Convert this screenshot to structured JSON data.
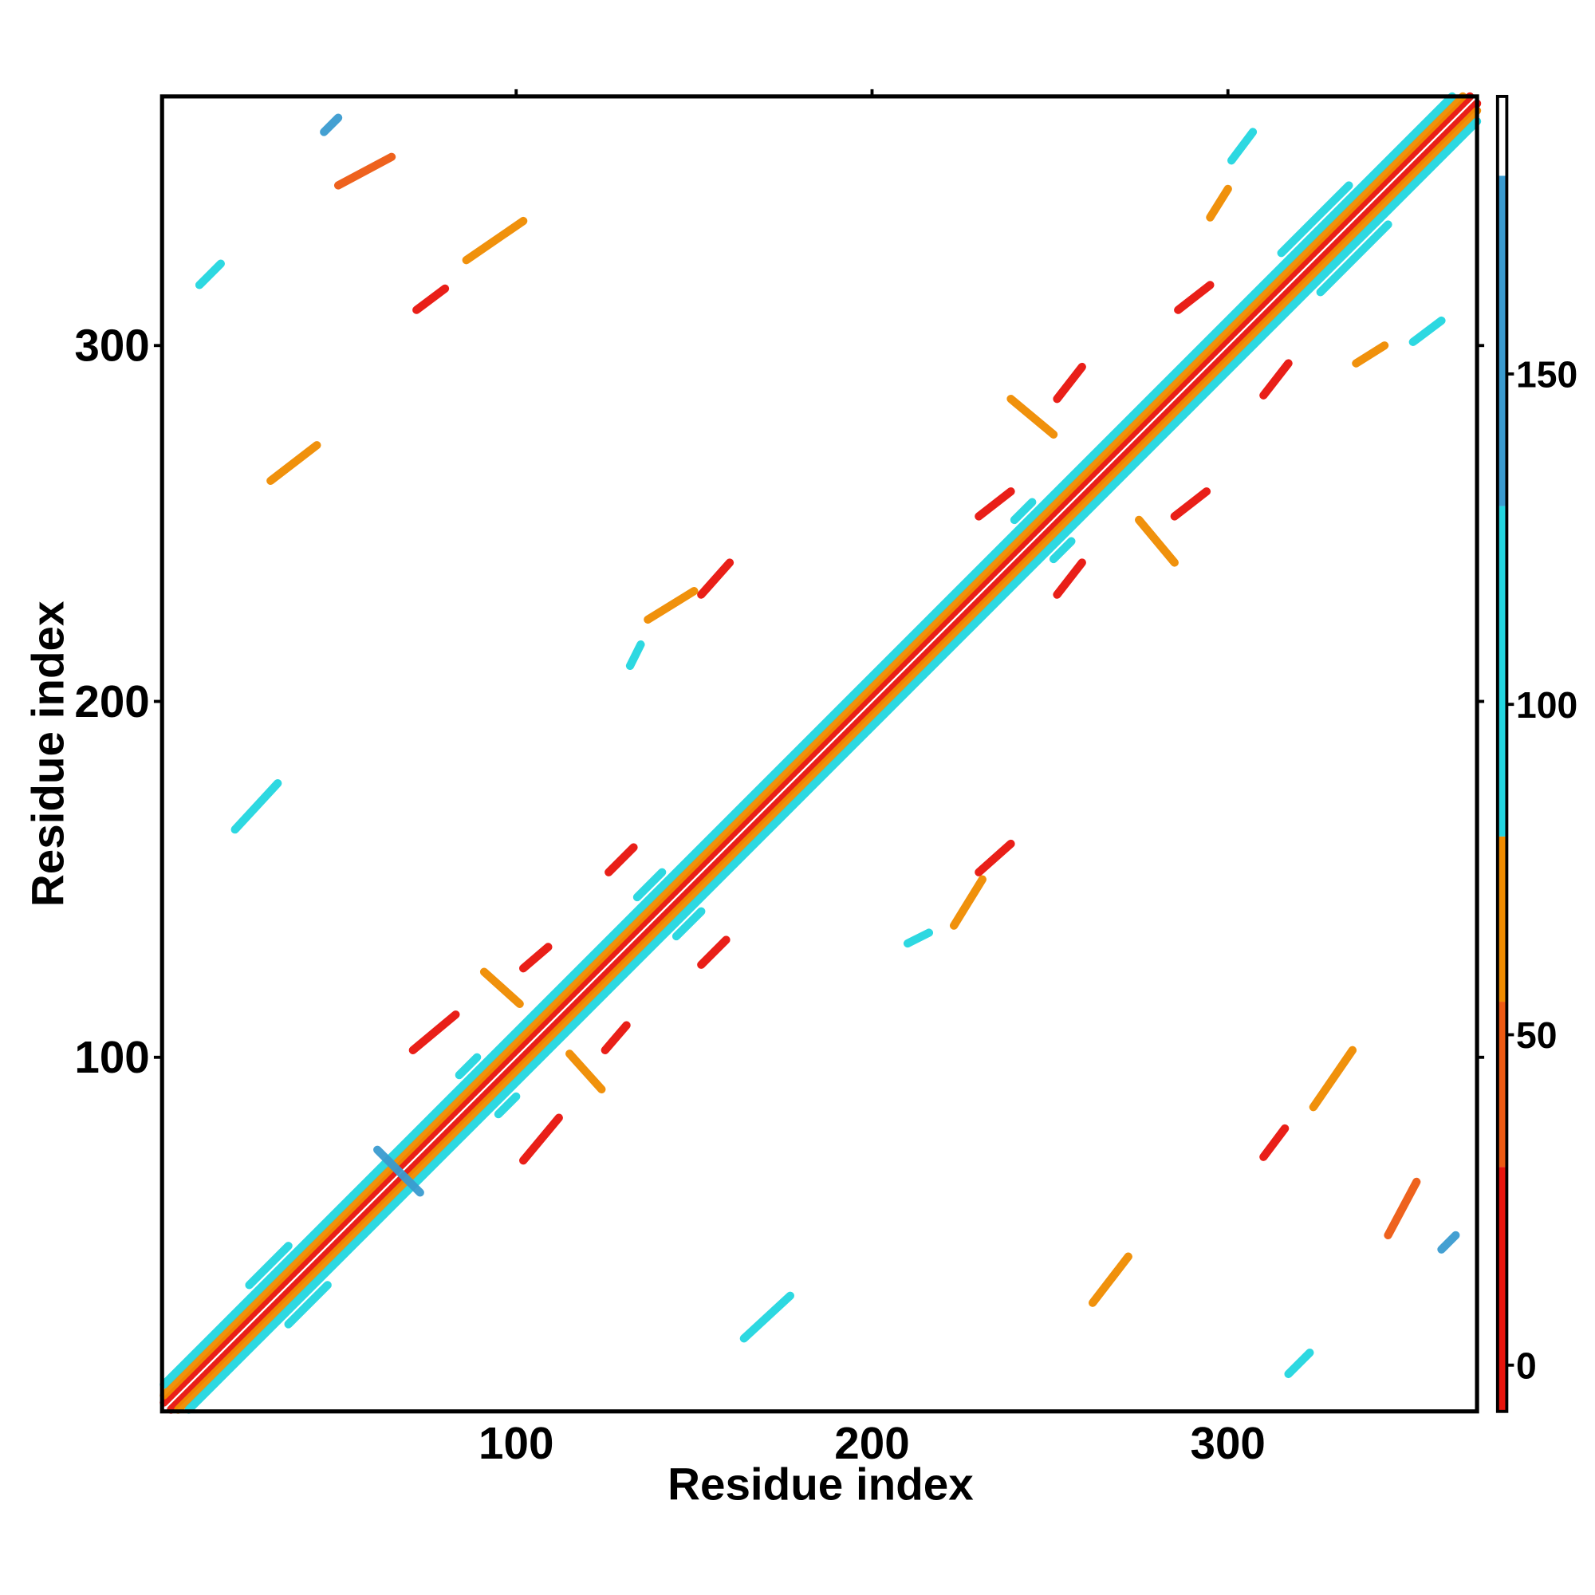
{
  "chart_data": {
    "type": "heatmap",
    "xlabel": "Residue index",
    "ylabel": "Residue index",
    "xlim": [
      0.5,
      370
    ],
    "ylim": [
      0.5,
      370
    ],
    "xticks": [
      100,
      200,
      300
    ],
    "yticks": [
      100,
      200,
      300
    ],
    "colorbar": {
      "lim": [
        -7,
        192
      ],
      "ticks": [
        0,
        50,
        100,
        150
      ],
      "bins": [
        -7,
        30,
        55,
        80,
        130,
        180,
        192
      ],
      "colors": [
        "#e8140c",
        "#ee5a12",
        "#f08c00",
        "#22d6e0",
        "#3a9bd0",
        "#ffffff"
      ]
    },
    "segments": [
      {
        "x": [
          1,
          368
        ],
        "y": [
          3,
          370
        ],
        "value": 10
      },
      {
        "x": [
          3,
          370
        ],
        "y": [
          1,
          368
        ],
        "value": 10
      },
      {
        "x": [
          1,
          366
        ],
        "y": [
          5,
          370
        ],
        "value": 60
      },
      {
        "x": [
          5,
          370
        ],
        "y": [
          1,
          366
        ],
        "value": 60
      },
      {
        "x": [
          1,
          363
        ],
        "y": [
          8,
          370
        ],
        "value": 95
      },
      {
        "x": [
          8,
          370
        ],
        "y": [
          1,
          363
        ],
        "value": 95
      },
      {
        "x": [
          25,
          36
        ],
        "y": [
          36,
          47
        ],
        "value": 100
      },
      {
        "x": [
          36,
          47
        ],
        "y": [
          25,
          36
        ],
        "value": 100
      },
      {
        "x": [
          84,
          89
        ],
        "y": [
          95,
          100
        ],
        "value": 100
      },
      {
        "x": [
          95,
          100
        ],
        "y": [
          84,
          89
        ],
        "value": 100
      },
      {
        "x": [
          134,
          141
        ],
        "y": [
          145,
          152
        ],
        "value": 100
      },
      {
        "x": [
          145,
          152
        ],
        "y": [
          134,
          141
        ],
        "value": 100
      },
      {
        "x": [
          240,
          245
        ],
        "y": [
          251,
          256
        ],
        "value": 100
      },
      {
        "x": [
          251,
          256
        ],
        "y": [
          240,
          245
        ],
        "value": 100
      },
      {
        "x": [
          315,
          334
        ],
        "y": [
          326,
          345
        ],
        "value": 100
      },
      {
        "x": [
          326,
          345
        ],
        "y": [
          315,
          334
        ],
        "value": 100
      },
      {
        "x": [
          102,
          109
        ],
        "y": [
          125,
          131
        ],
        "value": 20
      },
      {
        "x": [
          125,
          131
        ],
        "y": [
          102,
          109
        ],
        "value": 20
      },
      {
        "x": [
          71,
          83
        ],
        "y": [
          102,
          112
        ],
        "value": 20
      },
      {
        "x": [
          102,
          112
        ],
        "y": [
          71,
          83
        ],
        "value": 20
      },
      {
        "x": [
          152,
          159
        ],
        "y": [
          126,
          133
        ],
        "value": 20
      },
      {
        "x": [
          126,
          133
        ],
        "y": [
          152,
          159
        ],
        "value": 20
      },
      {
        "x": [
          152,
          160
        ],
        "y": [
          230,
          239
        ],
        "value": 20
      },
      {
        "x": [
          230,
          239
        ],
        "y": [
          152,
          160
        ],
        "value": 20
      },
      {
        "x": [
          230,
          239
        ],
        "y": [
          252,
          259
        ],
        "value": 20
      },
      {
        "x": [
          252,
          259
        ],
        "y": [
          230,
          239
        ],
        "value": 20
      },
      {
        "x": [
          285,
          294
        ],
        "y": [
          252,
          259
        ],
        "value": 20
      },
      {
        "x": [
          252,
          259
        ],
        "y": [
          285,
          294
        ],
        "value": 20
      },
      {
        "x": [
          286,
          295
        ],
        "y": [
          310,
          317
        ],
        "value": 20
      },
      {
        "x": [
          310,
          317
        ],
        "y": [
          286,
          295
        ],
        "value": 20
      },
      {
        "x": [
          72,
          80
        ],
        "y": [
          310,
          316
        ],
        "value": 20
      },
      {
        "x": [
          310,
          316
        ],
        "y": [
          72,
          80
        ],
        "value": 20
      },
      {
        "x": [
          50,
          65
        ],
        "y": [
          345,
          353
        ],
        "value": 40
      },
      {
        "x": [
          345,
          353
        ],
        "y": [
          50,
          65
        ],
        "value": 40
      },
      {
        "x": [
          86,
          102
        ],
        "y": [
          324,
          335
        ],
        "value": 60
      },
      {
        "x": [
          324,
          335
        ],
        "y": [
          86,
          102
        ],
        "value": 60
      },
      {
        "x": [
          46,
          50
        ],
        "y": [
          360,
          364
        ],
        "value": 140
      },
      {
        "x": [
          360,
          364
        ],
        "y": [
          46,
          50
        ],
        "value": 140
      },
      {
        "x": [
          164,
          177
        ],
        "y": [
          21,
          33
        ],
        "value": 120
      },
      {
        "x": [
          21,
          33
        ],
        "y": [
          164,
          177
        ],
        "value": 120
      },
      {
        "x": [
          61,
          73
        ],
        "y": [
          74,
          62
        ],
        "value": 130
      },
      {
        "x": [
          262,
          272
        ],
        "y": [
          31,
          44
        ],
        "value": 60
      },
      {
        "x": [
          31,
          44
        ],
        "y": [
          262,
          272
        ],
        "value": 60
      },
      {
        "x": [
          91,
          101
        ],
        "y": [
          124,
          115
        ],
        "value": 60
      },
      {
        "x": [
          115,
          124
        ],
        "y": [
          101,
          91
        ],
        "value": 60
      },
      {
        "x": [
          317,
          323
        ],
        "y": [
          11,
          17
        ],
        "value": 110
      },
      {
        "x": [
          11,
          17
        ],
        "y": [
          317,
          323
        ],
        "value": 110
      },
      {
        "x": [
          295,
          300
        ],
        "y": [
          336,
          344
        ],
        "value": 55
      },
      {
        "x": [
          336,
          344
        ],
        "y": [
          295,
          300
        ],
        "value": 55
      },
      {
        "x": [
          132,
          135
        ],
        "y": [
          210,
          216
        ],
        "value": 110
      },
      {
        "x": [
          210,
          216
        ],
        "y": [
          132,
          135
        ],
        "value": 110
      },
      {
        "x": [
          137,
          150
        ],
        "y": [
          223,
          231
        ],
        "value": 65
      },
      {
        "x": [
          223,
          231
        ],
        "y": [
          137,
          150
        ],
        "value": 65
      },
      {
        "x": [
          301,
          307
        ],
        "y": [
          352,
          360
        ],
        "value": 115
      },
      {
        "x": [
          352,
          360
        ],
        "y": [
          301,
          307
        ],
        "value": 115
      },
      {
        "x": [
          275,
          285
        ],
        "y": [
          251,
          239
        ],
        "value": 60
      },
      {
        "x": [
          239,
          251
        ],
        "y": [
          285,
          275
        ],
        "value": 60
      }
    ]
  }
}
